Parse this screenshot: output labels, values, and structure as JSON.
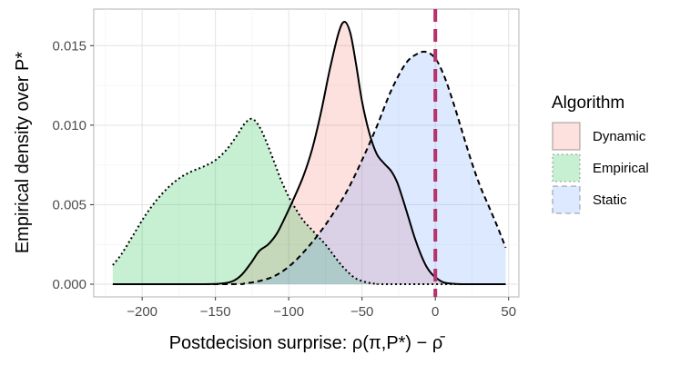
{
  "chart_data": {
    "type": "area",
    "title": "",
    "xlabel": "Postdecision surprise: ρ(π,P*) − ρ̄",
    "ylabel": "Empirical density over P*",
    "xlim": [
      -233,
      57
    ],
    "ylim": [
      -0.0008,
      0.0173
    ],
    "x_ticks": [
      -200,
      -150,
      -100,
      -50,
      0,
      50
    ],
    "x_tick_labels": [
      "−200",
      "−150",
      "−100",
      "−50",
      "0",
      "50"
    ],
    "y_ticks": [
      0,
      0.005,
      0.01,
      0.015
    ],
    "y_tick_labels": [
      "0.000",
      "0.005",
      "0.010",
      "0.015"
    ],
    "grid": true,
    "vline": {
      "x": 0,
      "color": "#b5336b",
      "style": "dashed"
    },
    "legend": {
      "title": "Algorithm",
      "position": "right",
      "entries": [
        {
          "label": "Dynamic",
          "fill": "#f8766d",
          "line": "solid"
        },
        {
          "label": "Empirical",
          "fill": "#00ba38",
          "line": "dotted"
        },
        {
          "label": "Static",
          "fill": "#619cff",
          "line": "dashed"
        }
      ]
    },
    "series": [
      {
        "name": "Dynamic",
        "fill": "#f8766d",
        "line_style": "solid",
        "points": [
          [
            -220,
            0
          ],
          [
            -160,
            0
          ],
          [
            -145,
            5e-05
          ],
          [
            -138,
            0.0002
          ],
          [
            -132,
            0.0006
          ],
          [
            -126,
            0.0013
          ],
          [
            -120,
            0.0021
          ],
          [
            -114,
            0.0025
          ],
          [
            -108,
            0.0032
          ],
          [
            -102,
            0.0043
          ],
          [
            -96,
            0.0055
          ],
          [
            -90,
            0.0068
          ],
          [
            -84,
            0.0085
          ],
          [
            -78,
            0.0108
          ],
          [
            -72,
            0.0135
          ],
          [
            -66,
            0.0158
          ],
          [
            -62,
            0.0165
          ],
          [
            -58,
            0.0158
          ],
          [
            -54,
            0.0138
          ],
          [
            -50,
            0.0115
          ],
          [
            -45,
            0.0095
          ],
          [
            -40,
            0.0082
          ],
          [
            -35,
            0.0076
          ],
          [
            -30,
            0.0071
          ],
          [
            -26,
            0.0064
          ],
          [
            -22,
            0.0053
          ],
          [
            -18,
            0.0041
          ],
          [
            -14,
            0.0029
          ],
          [
            -10,
            0.0019
          ],
          [
            -6,
            0.0011
          ],
          [
            -2,
            0.0006
          ],
          [
            2,
            0.0003
          ],
          [
            6,
            0.0001
          ],
          [
            12,
            3e-05
          ],
          [
            20,
            0
          ],
          [
            48,
            0
          ]
        ]
      },
      {
        "name": "Empirical",
        "fill": "#00ba38",
        "line_style": "dotted",
        "points": [
          [
            -220,
            0.0012
          ],
          [
            -214,
            0.0019
          ],
          [
            -206,
            0.0031
          ],
          [
            -198,
            0.0043
          ],
          [
            -190,
            0.0053
          ],
          [
            -182,
            0.0061
          ],
          [
            -174,
            0.0067
          ],
          [
            -166,
            0.0071
          ],
          [
            -158,
            0.0074
          ],
          [
            -150,
            0.0078
          ],
          [
            -142,
            0.0085
          ],
          [
            -135,
            0.0094
          ],
          [
            -130,
            0.0101
          ],
          [
            -125,
            0.0104
          ],
          [
            -120,
            0.0099
          ],
          [
            -115,
            0.0089
          ],
          [
            -110,
            0.0077
          ],
          [
            -105,
            0.0065
          ],
          [
            -100,
            0.0055
          ],
          [
            -95,
            0.0047
          ],
          [
            -90,
            0.004
          ],
          [
            -85,
            0.0035
          ],
          [
            -80,
            0.003
          ],
          [
            -75,
            0.0025
          ],
          [
            -70,
            0.0019
          ],
          [
            -65,
            0.0013
          ],
          [
            -60,
            0.0008
          ],
          [
            -55,
            0.0004
          ],
          [
            -50,
            0.0002
          ],
          [
            -45,
            8e-05
          ],
          [
            -40,
            2e-05
          ],
          [
            -30,
            0
          ],
          [
            48,
            0
          ]
        ]
      },
      {
        "name": "Static",
        "fill": "#619cff",
        "line_style": "dashed",
        "points": [
          [
            -220,
            0
          ],
          [
            -140,
            0
          ],
          [
            -130,
            5e-05
          ],
          [
            -120,
            0.0002
          ],
          [
            -110,
            0.0005
          ],
          [
            -100,
            0.0011
          ],
          [
            -90,
            0.002
          ],
          [
            -80,
            0.0031
          ],
          [
            -70,
            0.0044
          ],
          [
            -60,
            0.0059
          ],
          [
            -50,
            0.0078
          ],
          [
            -40,
            0.0099
          ],
          [
            -30,
            0.0122
          ],
          [
            -20,
            0.0139
          ],
          [
            -12,
            0.0145
          ],
          [
            -6,
            0.0146
          ],
          [
            0,
            0.0142
          ],
          [
            6,
            0.0131
          ],
          [
            12,
            0.0115
          ],
          [
            18,
            0.0097
          ],
          [
            24,
            0.0079
          ],
          [
            30,
            0.0063
          ],
          [
            36,
            0.005
          ],
          [
            42,
            0.0037
          ],
          [
            48,
            0.0023
          ]
        ]
      }
    ]
  }
}
